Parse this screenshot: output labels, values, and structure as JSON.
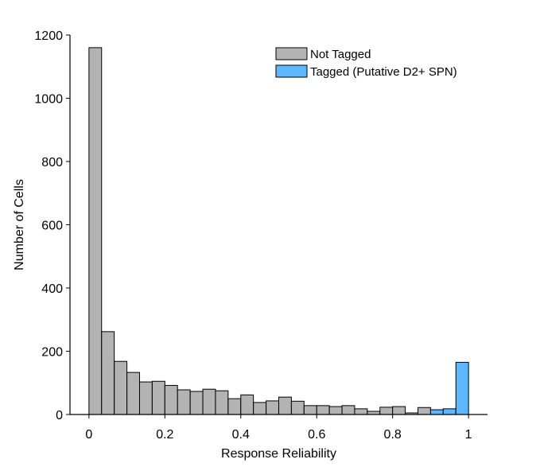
{
  "chart_data": {
    "type": "bar",
    "title": "",
    "xlabel": "Response Reliability",
    "ylabel": "Number of Cells",
    "xlim": [
      -0.05,
      1.05
    ],
    "ylim": [
      0,
      1200
    ],
    "xticks": [
      0,
      0.2,
      0.4,
      0.6,
      0.8,
      1
    ],
    "xtick_labels": [
      "0",
      "0.2",
      "0.4",
      "0.6",
      "0.8",
      "1"
    ],
    "yticks": [
      0,
      200,
      400,
      600,
      800,
      1000,
      1200
    ],
    "ytick_labels": [
      "0",
      "200",
      "400",
      "600",
      "800",
      "1000",
      "1200"
    ],
    "bin_width": 0.0333,
    "grid": false,
    "legend_position": "top-right",
    "colors": {
      "not_tagged": "#b3b3b3",
      "tagged": "#5db8ff",
      "edge": "#000000"
    },
    "series": [
      {
        "name": "Not Tagged",
        "bin_starts": [
          0,
          0.0333,
          0.0667,
          0.1,
          0.1333,
          0.1667,
          0.2,
          0.2333,
          0.2667,
          0.3,
          0.3333,
          0.3667,
          0.4,
          0.4333,
          0.4667,
          0.5,
          0.5333,
          0.5667,
          0.6,
          0.6333,
          0.6667,
          0.7,
          0.7333,
          0.7667,
          0.8,
          0.8333,
          0.8667
        ],
        "values": [
          1160,
          262,
          168,
          133,
          103,
          105,
          92,
          78,
          73,
          80,
          75,
          50,
          62,
          38,
          43,
          55,
          42,
          28,
          28,
          25,
          28,
          18,
          10,
          23,
          25,
          5,
          22
        ]
      },
      {
        "name": "Tagged (Putative D2+ SPN)",
        "bin_starts": [
          0.9,
          0.9333,
          0.9667
        ],
        "values": [
          15,
          18,
          165
        ]
      }
    ]
  }
}
